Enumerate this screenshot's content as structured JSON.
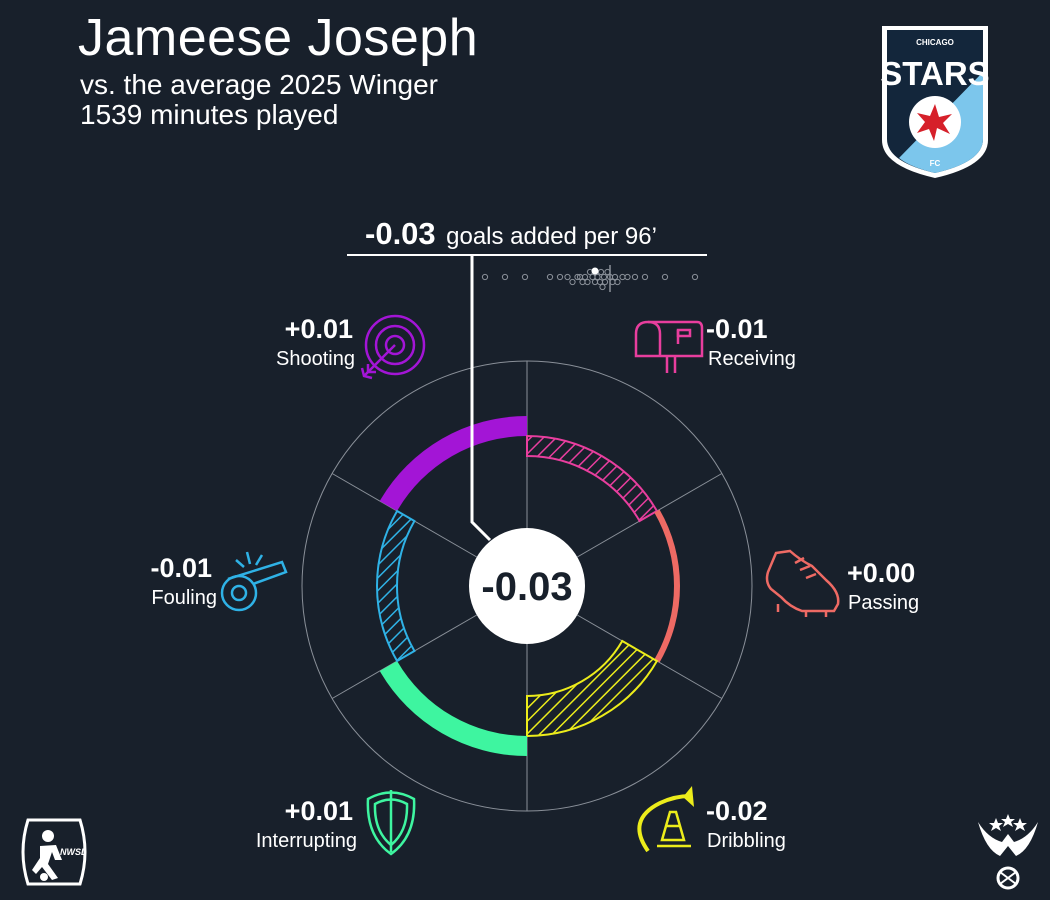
{
  "header": {
    "player_name": "Jameese Joseph",
    "comparison": "vs. the average 2025 Winger",
    "minutes": "1539 minutes played"
  },
  "colors": {
    "background": "#18202b",
    "shooting": "#a315d6",
    "receiving": "#e83e9e",
    "passing": "#ee6a64",
    "dribbling": "#ecec1b",
    "interrupting": "#3ef5a0",
    "fouling": "#2fb2e6"
  },
  "chart_data": {
    "type": "radial",
    "total": {
      "value_label": "-0.03",
      "suffix": "goals added per 96’",
      "center_label": "-0.03",
      "value": -0.03
    },
    "distribution_dots": [
      -0.25,
      -0.21,
      -0.17,
      -0.12,
      -0.1,
      -0.085,
      -0.075,
      -0.065,
      -0.06,
      -0.055,
      -0.05,
      -0.045,
      -0.04,
      -0.035,
      -0.03,
      -0.028,
      -0.025,
      -0.02,
      -0.018,
      -0.015,
      -0.012,
      -0.01,
      -0.005,
      0.0,
      0.005,
      0.01,
      0.015,
      0.025,
      0.035,
      0.05,
      0.07,
      0.11,
      0.17
    ],
    "distribution_range": [
      -0.27,
      0.18
    ],
    "distribution_average": 0,
    "categories": [
      {
        "key": "shooting",
        "name": "Shooting",
        "value_label": "+0.01",
        "value": 0.01,
        "icon": "target-icon"
      },
      {
        "key": "receiving",
        "name": "Receiving",
        "value_label": "-0.01",
        "value": -0.01,
        "icon": "mailbox-icon"
      },
      {
        "key": "passing",
        "name": "Passing",
        "value_label": "+0.00",
        "value": 0.0,
        "icon": "cleat-icon"
      },
      {
        "key": "dribbling",
        "name": "Dribbling",
        "value_label": "-0.02",
        "value": -0.02,
        "icon": "cone-icon"
      },
      {
        "key": "interrupting",
        "name": "Interrupting",
        "value_label": "+0.01",
        "value": 0.01,
        "icon": "shield-icon"
      },
      {
        "key": "fouling",
        "name": "Fouling",
        "value_label": "-0.01",
        "value": -0.01,
        "icon": "whistle-icon"
      }
    ]
  },
  "logos": {
    "club_line1": "CHICAGO",
    "club_line2": "STARS",
    "club_line3": "FC",
    "league": "NWSL"
  }
}
